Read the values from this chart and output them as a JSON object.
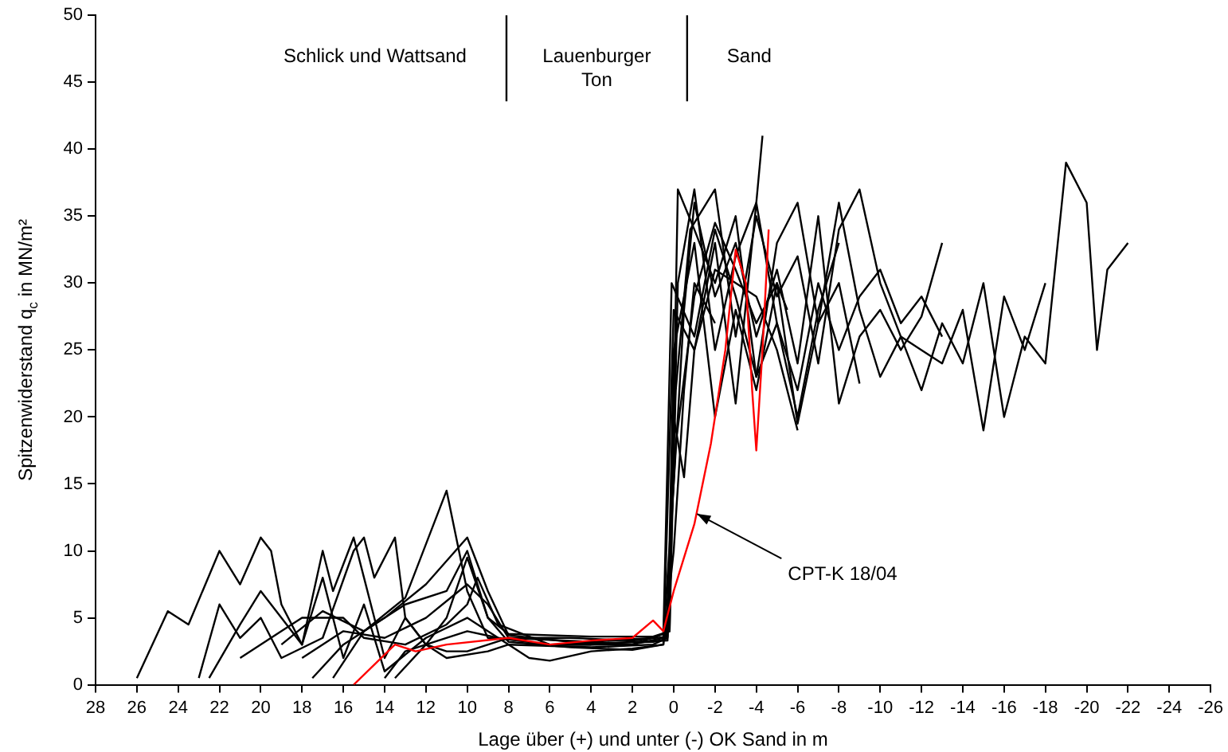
{
  "chart_data": {
    "type": "line",
    "xlabel": "Lage über (+) und unter (-) OK Sand in m",
    "ylabel": "Spitzenwiderstand q$_{c}$ in MN/m²",
    "xlim": [
      28,
      -26
    ],
    "xticks": [
      28,
      26,
      24,
      22,
      20,
      18,
      16,
      14,
      12,
      10,
      8,
      6,
      4,
      2,
      0,
      -2,
      -4,
      -6,
      -8,
      -10,
      -12,
      -14,
      -16,
      -18,
      -20,
      -22,
      -24,
      -26
    ],
    "ylim": [
      0,
      50
    ],
    "yticks": [
      0,
      5,
      10,
      15,
      20,
      25,
      30,
      35,
      40,
      45,
      50
    ],
    "grid": false,
    "legend": false,
    "marker": "none",
    "line_style": "solid",
    "ref_lines": [
      {
        "axis": "x",
        "value": 8.1,
        "label": null
      },
      {
        "axis": "x",
        "value": -0.65,
        "label": null
      }
    ],
    "annotations": [
      "Schlick und Wattsand",
      "Lauenburger\nTon",
      "Sand",
      {
        "text": "CPT-K 18/04",
        "x": -0.9,
        "y": 13
      }
    ],
    "series": [
      {
        "color": "#000000",
        "x": [
          26,
          24.5,
          23.5,
          22,
          21,
          20,
          19.5,
          19,
          18,
          17,
          16,
          15,
          14,
          12,
          10,
          8.5,
          6,
          4,
          2,
          0.5,
          0,
          -0.2,
          -0.5,
          -1,
          -2,
          -3,
          -4,
          -5,
          -6,
          -7,
          -8,
          -9,
          -10,
          -11,
          -12,
          -13
        ],
        "values": [
          0.5,
          5.5,
          4.5,
          10,
          7.5,
          11,
          10,
          6,
          3,
          8,
          2,
          6,
          1,
          3.5,
          5,
          3.5,
          3,
          3,
          3,
          3.5,
          15,
          20,
          28,
          36,
          29,
          33,
          26,
          31,
          24,
          35,
          21,
          26,
          28,
          25,
          27.5,
          33
        ]
      },
      {
        "color": "#000000",
        "x": [
          22.5,
          21,
          20,
          19,
          18,
          17,
          16.5,
          15.5,
          15,
          14,
          13,
          12,
          11,
          10,
          8,
          4,
          1,
          0.2,
          -0.2,
          -1,
          -2,
          -3,
          -4,
          -4.3
        ],
        "values": [
          0.5,
          4.5,
          7,
          5,
          3,
          10,
          7,
          11,
          8,
          2,
          5,
          3,
          2.5,
          2.5,
          3.5,
          3.2,
          3.5,
          4,
          30,
          37,
          25,
          32,
          36,
          41
        ]
      },
      {
        "color": "#000000",
        "x": [
          23,
          22,
          21,
          20,
          19,
          17,
          15.5,
          15,
          14.5,
          13.5,
          13,
          12,
          11,
          9,
          8,
          4,
          1,
          0.3,
          0,
          -1,
          -2,
          -3,
          -4,
          -5,
          -6,
          -7,
          -8,
          -9,
          -10,
          -11,
          -12,
          -13,
          -14,
          -15,
          -16,
          -17,
          -18,
          -19,
          -20,
          -20.5,
          -21,
          -22
        ],
        "values": [
          0.5,
          6,
          3.5,
          5,
          2,
          3.5,
          10,
          11,
          8,
          11,
          5,
          3,
          2,
          2.5,
          3,
          2.8,
          3,
          3.5,
          25,
          33,
          20,
          28,
          22,
          30,
          19.5,
          27,
          36,
          28,
          23,
          26,
          22,
          27,
          24,
          30,
          20,
          26,
          24,
          39,
          36,
          25,
          31,
          33
        ]
      },
      {
        "color": "#000000",
        "x": [
          16.5,
          15,
          13,
          11,
          10,
          9,
          8,
          6,
          4,
          2,
          0.3,
          -0.1,
          -0.8,
          -2,
          -3,
          -4,
          -5,
          -6,
          -7,
          -8,
          -9,
          -10,
          -11,
          -12,
          -13,
          -14,
          -15,
          -16,
          -17,
          -18
        ],
        "values": [
          0.5,
          4,
          6.5,
          14.5,
          7,
          3.5,
          3.4,
          3,
          3,
          3.2,
          3.3,
          22,
          34,
          37,
          26,
          35,
          29,
          32,
          24,
          34,
          37,
          30,
          26,
          25,
          24,
          28,
          19,
          29,
          25,
          30
        ]
      },
      {
        "color": "#000000",
        "x": [
          17.5,
          16,
          14,
          12,
          10,
          9,
          8,
          5,
          2,
          0.5,
          0.1,
          -1,
          -2,
          -3,
          -4,
          -5,
          -6,
          -7,
          -8,
          -9
        ],
        "values": [
          0.5,
          3,
          5,
          7.5,
          11,
          7,
          3.7,
          3.2,
          3,
          3.8,
          30,
          26,
          34,
          29,
          23,
          33,
          36,
          27,
          30,
          22.5
        ]
      },
      {
        "color": "#000000",
        "x": [
          14,
          13,
          12,
          11,
          10,
          9,
          8,
          5,
          2,
          0.5,
          0,
          -1,
          -2,
          -3,
          -4,
          -5,
          -6,
          -7,
          -8,
          -9,
          -10,
          -11,
          -12,
          -13
        ],
        "values": [
          0.5,
          2.5,
          3,
          5,
          9.5,
          5,
          3.2,
          2.8,
          2.6,
          3,
          28,
          25,
          33,
          21,
          36,
          27,
          22,
          30,
          25,
          29,
          31,
          27,
          29,
          26
        ]
      },
      {
        "color": "#000000",
        "x": [
          18,
          16,
          14,
          12,
          10,
          9,
          8,
          5,
          2,
          0.3,
          0,
          -0.5,
          -1,
          -2,
          -3,
          -4,
          -5,
          -6
        ],
        "values": [
          2,
          4,
          3.5,
          5,
          7.5,
          6,
          3.5,
          3.5,
          3.3,
          3.6,
          20,
          15.5,
          25,
          31,
          30,
          29,
          25,
          19
        ]
      },
      {
        "color": "#000000",
        "x": [
          19,
          17,
          15,
          13,
          11,
          10,
          9,
          8,
          4,
          1,
          0.2,
          -0.2,
          -1,
          -2,
          -3,
          -4,
          -5,
          -6,
          -7,
          -8
        ],
        "values": [
          3,
          5.5,
          4,
          6,
          7,
          10,
          5,
          3.8,
          3.6,
          3.6,
          4,
          37,
          34,
          30,
          35,
          23,
          27,
          20,
          28,
          33
        ]
      },
      {
        "color": "#000000",
        "x": [
          21,
          19,
          18,
          16,
          15,
          13,
          11,
          10,
          9.5,
          8.5,
          6,
          4,
          1,
          0.4,
          -0.1,
          -1,
          -2,
          -3,
          -4,
          -5,
          -5.5
        ],
        "values": [
          2,
          4,
          5,
          5,
          3.5,
          3,
          4.5,
          6,
          8,
          4.5,
          3,
          3.1,
          3.2,
          3.4,
          18,
          29,
          34.5,
          31,
          27,
          30,
          28
        ]
      },
      {
        "color": "#000000",
        "x": [
          13.5,
          12,
          10,
          8.5,
          7,
          6,
          4,
          2,
          0.5,
          0,
          -0.5,
          -1,
          -2
        ],
        "values": [
          0.5,
          3,
          4,
          3.5,
          2,
          1.8,
          2.5,
          2.7,
          3,
          10,
          22,
          30,
          27
        ]
      },
      {
        "color": "#ff0000",
        "x": [
          15.5,
          13.5,
          12.5,
          11,
          8,
          6,
          4,
          2,
          1,
          0.5,
          0,
          -1,
          -1.8,
          -2.5,
          -3,
          -3.5,
          -3.8,
          -4,
          -4.3,
          -4.6
        ],
        "values": [
          0,
          3,
          2.5,
          3,
          3.5,
          3,
          3.3,
          3.5,
          4.8,
          4,
          7,
          12,
          18,
          25,
          32.5,
          30,
          22,
          17.5,
          25,
          34
        ]
      }
    ]
  }
}
